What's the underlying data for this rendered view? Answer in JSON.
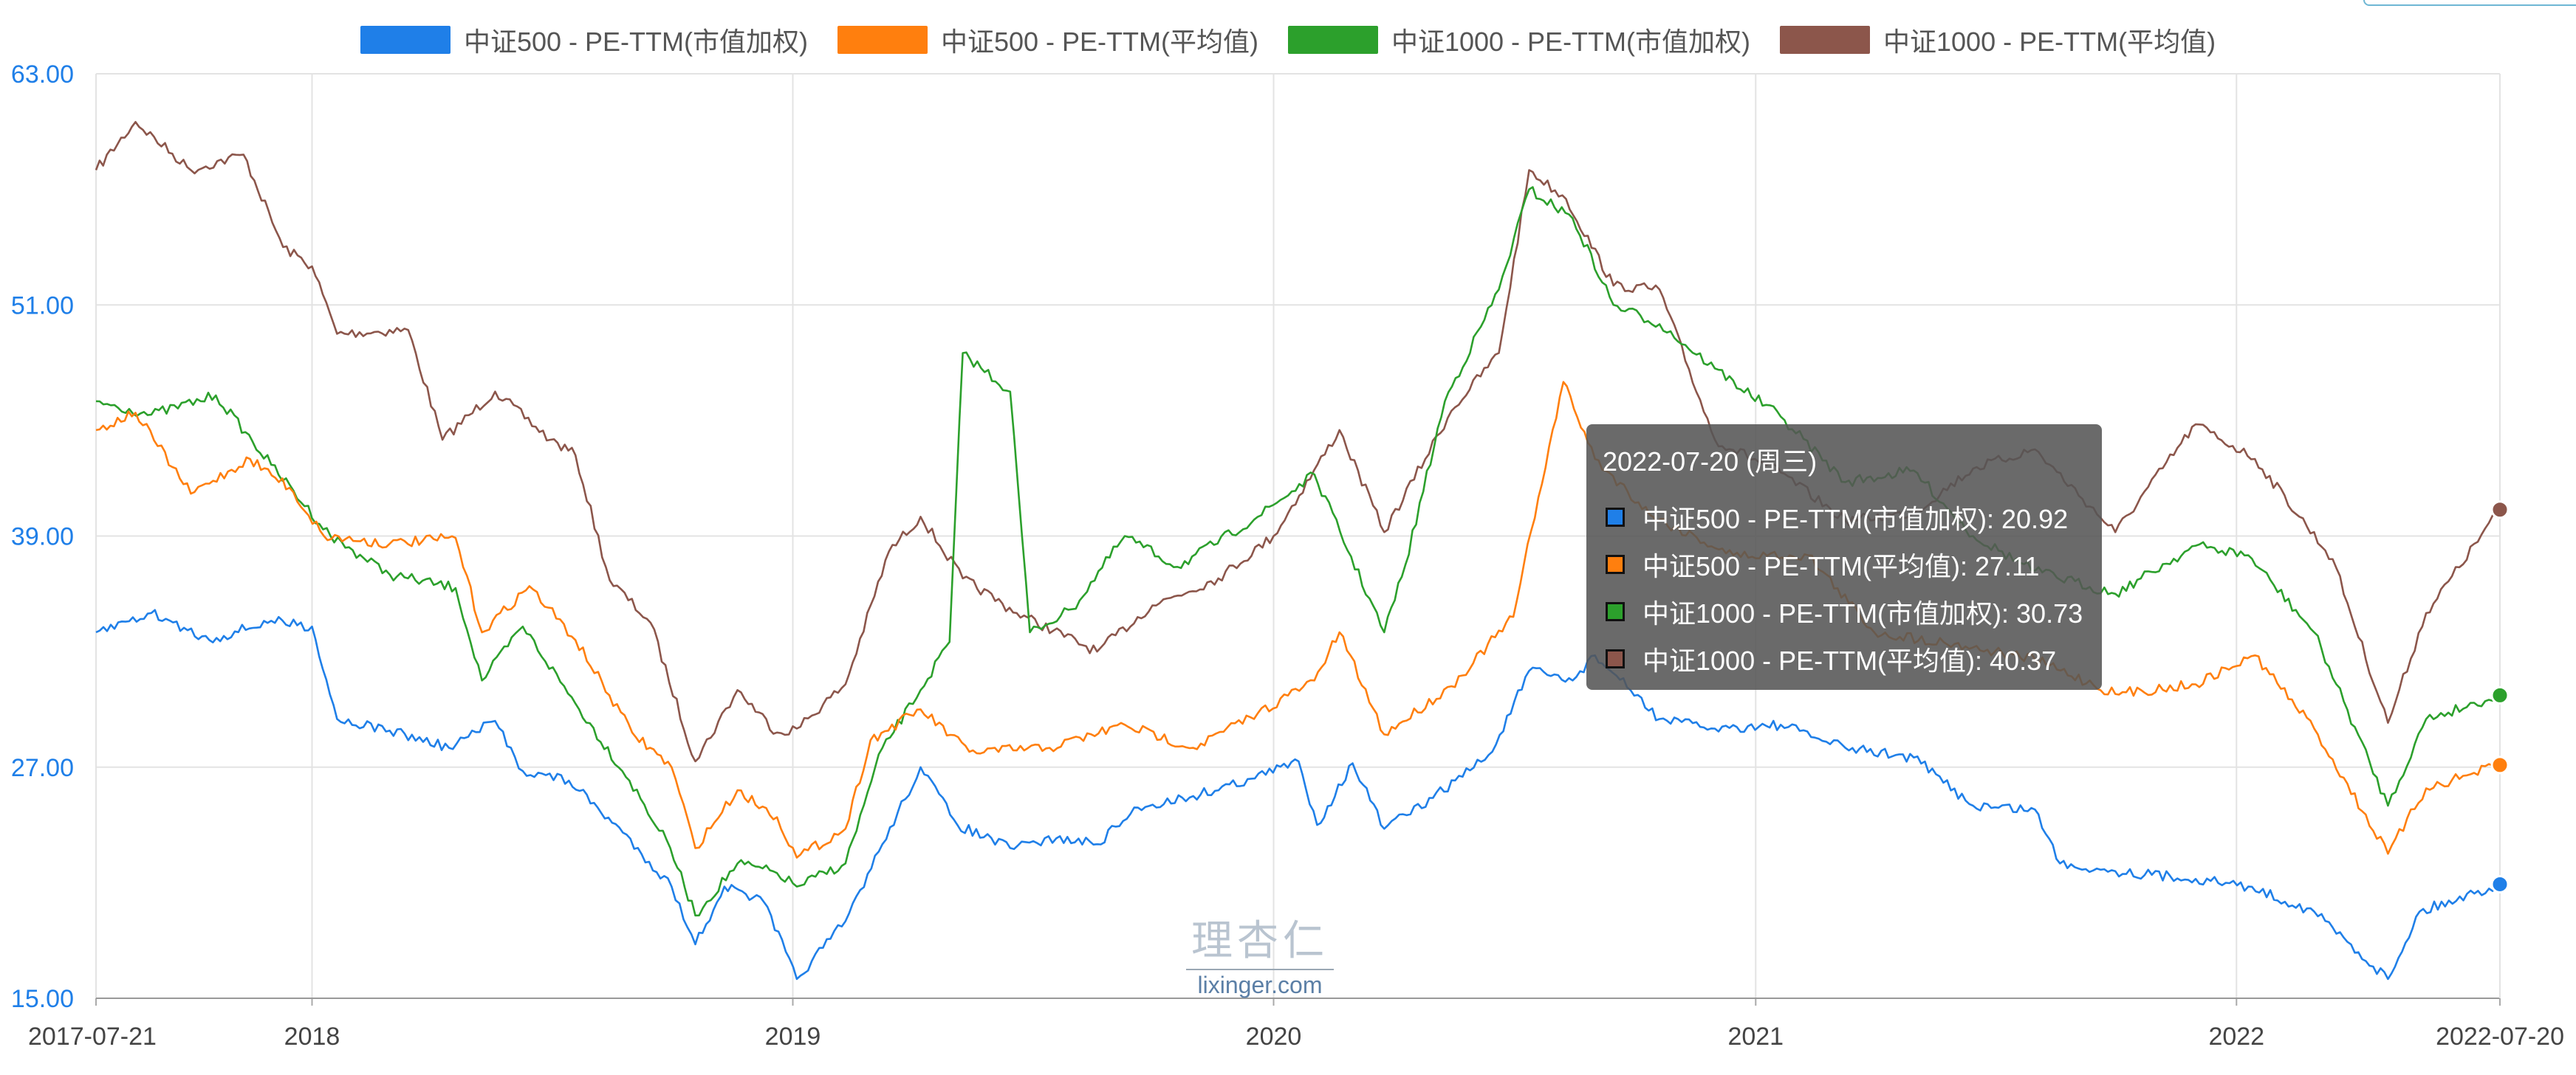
{
  "chart_data": {
    "type": "line",
    "title": "",
    "xlabel": "",
    "ylabel": "",
    "ylim": [
      15,
      63
    ],
    "yticks": [
      "63.00",
      "51.00",
      "39.00",
      "27.00",
      "15.00"
    ],
    "xticks": [
      {
        "label": "2017-07-21",
        "date": "2017-07-21"
      },
      {
        "label": "2018",
        "date": "2018-01-01"
      },
      {
        "label": "2019",
        "date": "2019-01-01"
      },
      {
        "label": "2020",
        "date": "2020-01-01"
      },
      {
        "label": "2021",
        "date": "2021-01-01"
      },
      {
        "label": "2022",
        "date": "2022-01-01"
      },
      {
        "label": "2022-07-20",
        "date": "2022-07-20"
      }
    ],
    "xrange": [
      "2017-07-21",
      "2022-07-20"
    ],
    "grid": true,
    "legend_position": "top-center",
    "series": [
      {
        "name": "中证500 - PE-TTM(市值加权)",
        "color": "#1f7fe8",
        "points": [
          [
            "2017-07-21",
            34.0
          ],
          [
            "2017-09-01",
            35.0
          ],
          [
            "2017-10-15",
            33.6
          ],
          [
            "2017-12-01",
            34.6
          ],
          [
            "2018-01-01",
            34.3
          ],
          [
            "2018-01-20",
            29.5
          ],
          [
            "2018-03-01",
            28.9
          ],
          [
            "2018-04-15",
            28.0
          ],
          [
            "2018-05-20",
            29.4
          ],
          [
            "2018-06-10",
            26.8
          ],
          [
            "2018-07-15",
            26.3
          ],
          [
            "2018-08-25",
            23.6
          ],
          [
            "2018-10-01",
            20.8
          ],
          [
            "2018-10-19",
            17.8
          ],
          [
            "2018-11-10",
            20.8
          ],
          [
            "2018-12-10",
            20.0
          ],
          [
            "2019-01-04",
            16.0
          ],
          [
            "2019-02-10",
            19.0
          ],
          [
            "2019-03-10",
            23.0
          ],
          [
            "2019-04-08",
            27.0
          ],
          [
            "2019-05-06",
            24.0
          ],
          [
            "2019-06-15",
            22.8
          ],
          [
            "2019-07-20",
            23.3
          ],
          [
            "2019-08-20",
            23.0
          ],
          [
            "2019-09-20",
            24.9
          ],
          [
            "2019-11-01",
            25.5
          ],
          [
            "2019-12-15",
            26.4
          ],
          [
            "2020-01-20",
            27.3
          ],
          [
            "2020-02-03",
            24.0
          ],
          [
            "2020-03-01",
            27.2
          ],
          [
            "2020-03-25",
            23.8
          ],
          [
            "2020-05-01",
            25.4
          ],
          [
            "2020-06-15",
            27.8
          ],
          [
            "2020-07-13",
            32.0
          ],
          [
            "2020-08-15",
            31.5
          ],
          [
            "2020-09-01",
            32.8
          ],
          [
            "2020-09-28",
            31.0
          ],
          [
            "2020-10-20",
            29.5
          ],
          [
            "2020-12-01",
            29.0
          ],
          [
            "2021-01-20",
            29.2
          ],
          [
            "2021-03-10",
            28.0
          ],
          [
            "2021-05-01",
            27.5
          ],
          [
            "2021-06-15",
            25.0
          ],
          [
            "2021-08-01",
            24.8
          ],
          [
            "2021-08-20",
            22.0
          ],
          [
            "2021-10-01",
            21.6
          ],
          [
            "2021-12-01",
            21.2
          ],
          [
            "2022-01-10",
            20.8
          ],
          [
            "2022-03-01",
            19.5
          ],
          [
            "2022-04-26",
            16.0
          ],
          [
            "2022-05-20",
            19.5
          ],
          [
            "2022-07-20",
            20.92
          ]
        ]
      },
      {
        "name": "中证500 - PE-TTM(平均值)",
        "color": "#ff7f0e",
        "points": [
          [
            "2017-07-21",
            44.5
          ],
          [
            "2017-08-20",
            45.4
          ],
          [
            "2017-10-01",
            41.2
          ],
          [
            "2017-11-15",
            43.0
          ],
          [
            "2017-12-15",
            41.5
          ],
          [
            "2018-01-10",
            39.0
          ],
          [
            "2018-03-01",
            38.6
          ],
          [
            "2018-04-20",
            38.9
          ],
          [
            "2018-05-10",
            34.0
          ],
          [
            "2018-06-15",
            36.4
          ],
          [
            "2018-07-20",
            33.6
          ],
          [
            "2018-09-01",
            28.8
          ],
          [
            "2018-10-01",
            27.0
          ],
          [
            "2018-10-19",
            22.8
          ],
          [
            "2018-11-20",
            25.8
          ],
          [
            "2018-12-20",
            24.4
          ],
          [
            "2019-01-04",
            22.3
          ],
          [
            "2019-02-10",
            23.8
          ],
          [
            "2019-03-01",
            28.4
          ],
          [
            "2019-04-08",
            30.0
          ],
          [
            "2019-05-15",
            27.8
          ],
          [
            "2019-07-15",
            28.0
          ],
          [
            "2019-09-10",
            29.2
          ],
          [
            "2019-11-01",
            28.0
          ],
          [
            "2019-12-20",
            29.8
          ],
          [
            "2020-02-01",
            31.5
          ],
          [
            "2020-02-20",
            34.0
          ],
          [
            "2020-03-25",
            28.7
          ],
          [
            "2020-05-15",
            31.2
          ],
          [
            "2020-07-01",
            34.8
          ],
          [
            "2020-07-20",
            41.0
          ],
          [
            "2020-08-08",
            47.0
          ],
          [
            "2020-09-01",
            43.0
          ],
          [
            "2020-10-15",
            40.0
          ],
          [
            "2020-12-15",
            38.0
          ],
          [
            "2021-02-10",
            38.0
          ],
          [
            "2021-04-01",
            34.0
          ],
          [
            "2021-06-01",
            33.4
          ],
          [
            "2021-08-01",
            32.6
          ],
          [
            "2021-10-01",
            30.8
          ],
          [
            "2021-12-01",
            31.3
          ],
          [
            "2022-01-15",
            32.8
          ],
          [
            "2022-03-01",
            29.0
          ],
          [
            "2022-04-26",
            22.5
          ],
          [
            "2022-05-25",
            25.9
          ],
          [
            "2022-07-20",
            27.11
          ]
        ]
      },
      {
        "name": "中证1000 - PE-TTM(市值加权)",
        "color": "#2ca02c",
        "points": [
          [
            "2017-07-21",
            46.0
          ],
          [
            "2017-09-01",
            45.3
          ],
          [
            "2017-10-20",
            46.3
          ],
          [
            "2017-12-01",
            42.7
          ],
          [
            "2018-01-15",
            39.0
          ],
          [
            "2018-03-01",
            37.0
          ],
          [
            "2018-04-20",
            36.3
          ],
          [
            "2018-05-10",
            31.5
          ],
          [
            "2018-06-10",
            34.3
          ],
          [
            "2018-07-20",
            30.3
          ],
          [
            "2018-08-30",
            26.3
          ],
          [
            "2018-09-30",
            22.8
          ],
          [
            "2018-10-19",
            19.3
          ],
          [
            "2018-11-20",
            22.0
          ],
          [
            "2018-12-20",
            21.5
          ],
          [
            "2019-01-04",
            20.8
          ],
          [
            "2019-02-10",
            22.0
          ],
          [
            "2019-03-10",
            28.0
          ],
          [
            "2019-04-08",
            31.0
          ],
          [
            "2019-04-30",
            33.5
          ],
          [
            "2019-05-10",
            48.5
          ],
          [
            "2019-06-15",
            46.5
          ],
          [
            "2019-06-30",
            34.0
          ],
          [
            "2019-08-01",
            35.2
          ],
          [
            "2019-09-10",
            39.0
          ],
          [
            "2019-10-20",
            37.4
          ],
          [
            "2019-12-20",
            40.0
          ],
          [
            "2020-02-01",
            42.2
          ],
          [
            "2020-03-25",
            34.0
          ],
          [
            "2020-04-10",
            37.5
          ],
          [
            "2020-05-10",
            46.0
          ],
          [
            "2020-06-20",
            51.8
          ],
          [
            "2020-07-13",
            57.0
          ],
          [
            "2020-08-15",
            55.5
          ],
          [
            "2020-09-15",
            51.0
          ],
          [
            "2020-10-20",
            50.0
          ],
          [
            "2020-12-01",
            47.7
          ],
          [
            "2021-01-20",
            45.2
          ],
          [
            "2021-03-10",
            41.8
          ],
          [
            "2021-05-01",
            42.4
          ],
          [
            "2021-06-15",
            39.0
          ],
          [
            "2021-08-01",
            37.2
          ],
          [
            "2021-10-01",
            36.0
          ],
          [
            "2021-12-01",
            38.5
          ],
          [
            "2022-01-10",
            38.0
          ],
          [
            "2022-03-01",
            34.0
          ],
          [
            "2022-04-26",
            25.0
          ],
          [
            "2022-05-25",
            29.5
          ],
          [
            "2022-07-20",
            30.73
          ]
        ]
      },
      {
        "name": "中证1000 - PE-TTM(平均值)",
        "color": "#8c564b",
        "points": [
          [
            "2017-07-21",
            58.0
          ],
          [
            "2017-08-20",
            60.5
          ],
          [
            "2017-10-01",
            58.0
          ],
          [
            "2017-11-10",
            58.8
          ],
          [
            "2017-12-10",
            54.0
          ],
          [
            "2018-01-01",
            53.0
          ],
          [
            "2018-01-20",
            49.5
          ],
          [
            "2018-03-15",
            49.7
          ],
          [
            "2018-04-10",
            44.0
          ],
          [
            "2018-05-20",
            46.5
          ],
          [
            "2018-07-01",
            44.0
          ],
          [
            "2018-07-20",
            43.2
          ],
          [
            "2018-08-15",
            36.7
          ],
          [
            "2018-09-15",
            34.5
          ],
          [
            "2018-10-19",
            27.3
          ],
          [
            "2018-11-20",
            31.0
          ],
          [
            "2018-12-20",
            28.8
          ],
          [
            "2019-01-04",
            29.0
          ],
          [
            "2019-02-10",
            31.3
          ],
          [
            "2019-03-15",
            38.2
          ],
          [
            "2019-04-08",
            40.0
          ],
          [
            "2019-05-10",
            36.8
          ],
          [
            "2019-06-20",
            35.0
          ],
          [
            "2019-08-20",
            33.0
          ],
          [
            "2019-10-01",
            35.4
          ],
          [
            "2019-11-20",
            36.8
          ],
          [
            "2020-01-01",
            39.0
          ],
          [
            "2020-02-20",
            44.5
          ],
          [
            "2020-03-25",
            39.2
          ],
          [
            "2020-05-15",
            45.5
          ],
          [
            "2020-06-20",
            48.5
          ],
          [
            "2020-07-13",
            58.0
          ],
          [
            "2020-08-10",
            56.5
          ],
          [
            "2020-09-15",
            52.0
          ],
          [
            "2020-10-20",
            51.8
          ],
          [
            "2020-12-01",
            44.0
          ],
          [
            "2021-01-20",
            42.3
          ],
          [
            "2021-03-10",
            39.8
          ],
          [
            "2021-05-01",
            40.2
          ],
          [
            "2021-06-15",
            42.5
          ],
          [
            "2021-08-01",
            43.5
          ],
          [
            "2021-10-01",
            39.2
          ],
          [
            "2021-12-01",
            44.8
          ],
          [
            "2022-01-15",
            43.0
          ],
          [
            "2022-03-15",
            37.8
          ],
          [
            "2022-04-26",
            29.3
          ],
          [
            "2022-05-25",
            35.0
          ],
          [
            "2022-07-20",
            40.37
          ]
        ]
      }
    ]
  },
  "tooltip": {
    "date": "2022-07-20 (周三)",
    "rows": [
      {
        "color": "#1f7fe8",
        "text": "中证500 - PE-TTM(市值加权): 20.92"
      },
      {
        "color": "#ff7f0e",
        "text": "中证500 - PE-TTM(平均值): 27.11"
      },
      {
        "color": "#2ca02c",
        "text": "中证1000 - PE-TTM(市值加权): 30.73"
      },
      {
        "color": "#8c564b",
        "text": "中证1000 - PE-TTM(平均值): 40.37"
      }
    ]
  },
  "watermark": {
    "logo": "理杏仁",
    "url": "lixinger.com"
  }
}
